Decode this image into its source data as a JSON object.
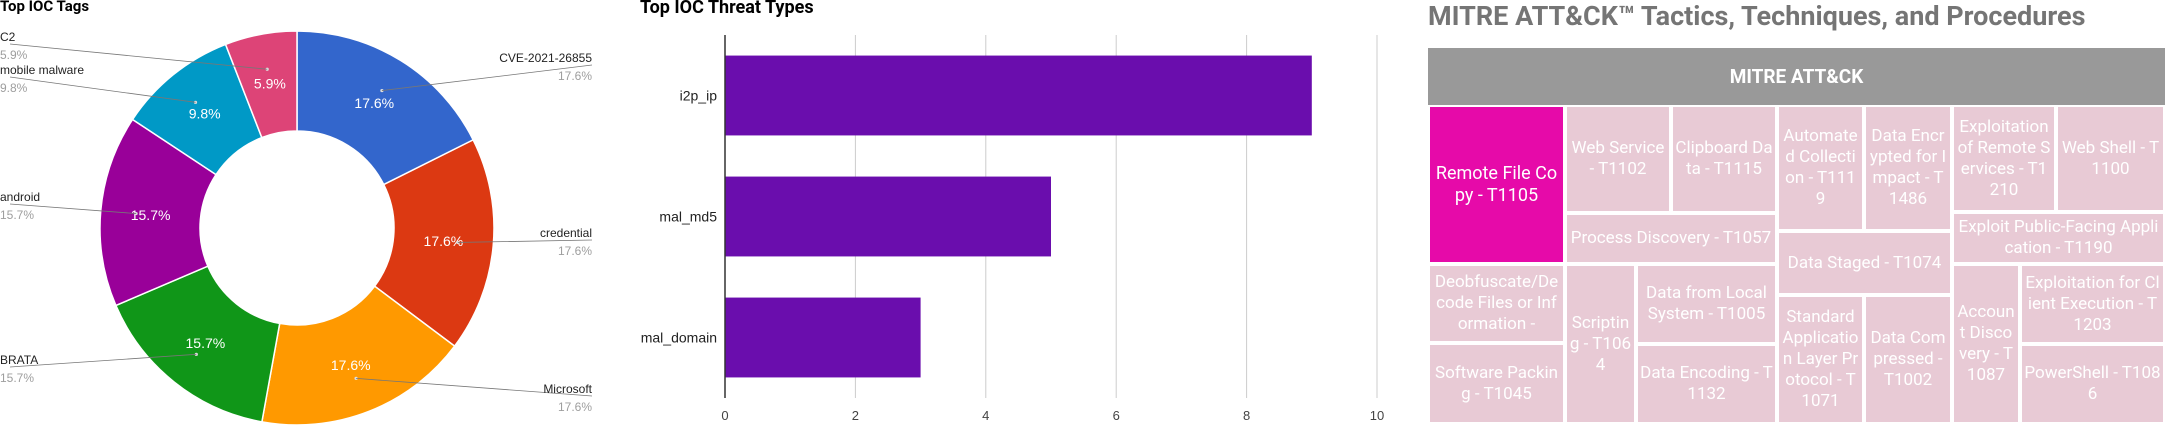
{
  "chart_data": [
    {
      "type": "pie",
      "title": "Top IOC Tags",
      "slices": [
        {
          "label": "CVE-2021-26855",
          "value": 17.6,
          "pct_label": "17.6%",
          "color": "#3366cc"
        },
        {
          "label": "credential",
          "value": 17.6,
          "pct_label": "17.6%",
          "color": "#dc3912"
        },
        {
          "label": "Microsoft",
          "value": 17.6,
          "pct_label": "17.6%",
          "color": "#ff9900"
        },
        {
          "label": "BRATA",
          "value": 15.7,
          "pct_label": "15.7%",
          "color": "#109618"
        },
        {
          "label": "android",
          "value": 15.7,
          "pct_label": "15.7%",
          "color": "#990099"
        },
        {
          "label": "mobile malware",
          "value": 9.8,
          "pct_label": "9.8%",
          "color": "#0099c6"
        },
        {
          "label": "C2",
          "value": 5.9,
          "pct_label": "5.9%",
          "color": "#dd4477"
        }
      ]
    },
    {
      "type": "bar",
      "orientation": "horizontal",
      "title": "Top IOC Threat Types",
      "categories": [
        "i2p_ip",
        "mal_md5",
        "mal_domain"
      ],
      "values": [
        9,
        5,
        3
      ],
      "xlim": [
        0,
        10
      ],
      "xticks": [
        "0",
        "2",
        "4",
        "6",
        "8",
        "10"
      ],
      "color": "#6a0dad",
      "grid": true
    }
  ],
  "mitre": {
    "title": "MITRE ATT&CK™ Tactics, Techniques, and Procedures",
    "header": "MITRE ATT&CK",
    "tiles": [
      {
        "id": "t1105",
        "label": "Remote File Copy - T1105",
        "highlight": true
      },
      {
        "id": "t1102",
        "label": "Web Service - T1102"
      },
      {
        "id": "t1115",
        "label": "Clipboard Data - T1115"
      },
      {
        "id": "t1119",
        "label": "Automated Collection - T1119"
      },
      {
        "id": "t1486",
        "label": "Data Encrypted for Impact - T1486"
      },
      {
        "id": "t1210",
        "label": "Exploitation of Remote Services - T1210"
      },
      {
        "id": "t1100",
        "label": "Web Shell - T1100"
      },
      {
        "id": "t1057",
        "label": "Process Discovery - T1057"
      },
      {
        "id": "t1190",
        "label": "Exploit Public-Facing Application - T1190"
      },
      {
        "id": "t1074",
        "label": "Data Staged - T1074"
      },
      {
        "id": "t1140",
        "label": "Deobfuscate/Decode Files or Information -"
      },
      {
        "id": "t1064",
        "label": "Scripting - T1064"
      },
      {
        "id": "t1005",
        "label": "Data from Local System - T1005"
      },
      {
        "id": "t1087",
        "label": "Account Discovery - T1087"
      },
      {
        "id": "t1203",
        "label": "Exploitation for Client Execution - T1203"
      },
      {
        "id": "t1071",
        "label": "Standard Application Layer Protocol - T1071"
      },
      {
        "id": "t1002",
        "label": "Data Compressed - T1002"
      },
      {
        "id": "t1045",
        "label": "Software Packing - T1045"
      },
      {
        "id": "t1132",
        "label": "Data Encoding - T1132"
      },
      {
        "id": "t1086",
        "label": "PowerShell - T1086"
      }
    ]
  }
}
